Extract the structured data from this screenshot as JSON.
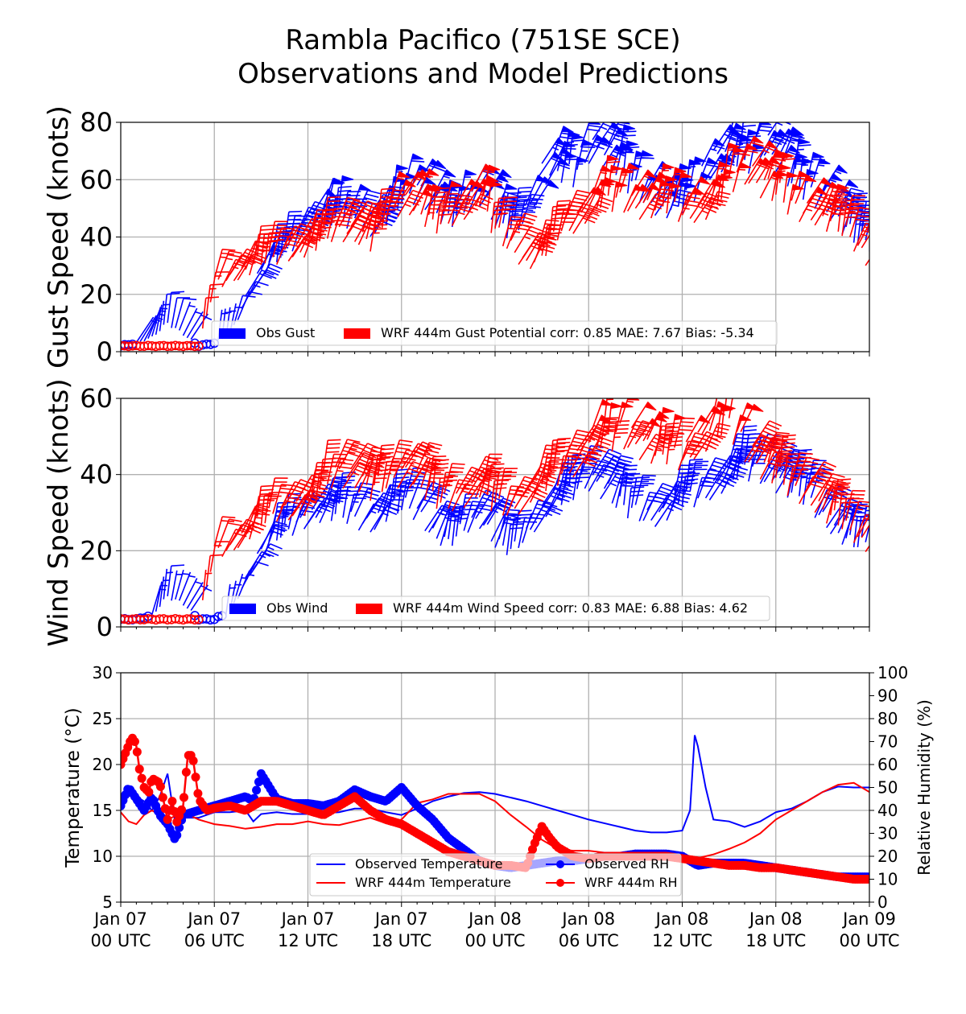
{
  "title": {
    "line1": "Rambla Pacifico (751SE SCE)",
    "line2": "Observations and Model Predictions"
  },
  "colors": {
    "obs": "#0000ff",
    "wrf": "#ff0000",
    "grid": "#b0b0b0"
  },
  "chart_data": [
    {
      "id": "gust",
      "type": "line",
      "subtype": "wind-barbs",
      "ylabel": "Gust Speed (knots)",
      "ylim": [
        0,
        80
      ],
      "yticks": [
        0,
        20,
        40,
        60,
        80
      ],
      "xlabel": "",
      "x_unit": "hours since Jan 07 00 UTC",
      "xlim": [
        0,
        48
      ],
      "grid": true,
      "legend": {
        "placement": "lower-center",
        "entries": [
          "Obs Gust",
          "WRF 444m Gust Potential corr: 0.85 MAE: 7.67 Bias: -5.34"
        ]
      },
      "series": [
        {
          "name": "Obs Gust",
          "x": [
            0,
            1,
            2,
            3,
            4,
            5,
            6,
            7,
            8,
            9,
            10,
            11,
            12,
            13,
            14,
            15,
            16,
            17,
            18,
            19,
            20,
            21,
            22,
            23,
            24,
            25,
            26,
            27,
            28,
            29,
            30,
            31,
            32,
            33,
            34,
            35,
            36,
            37,
            38,
            39,
            40,
            41,
            42,
            43,
            44,
            45,
            46,
            47,
            48
          ],
          "values": [
            2,
            3,
            5,
            10,
            6,
            2,
            3,
            6,
            18,
            28,
            33,
            38,
            43,
            48,
            47,
            45,
            42,
            48,
            54,
            56,
            50,
            46,
            50,
            55,
            46,
            42,
            48,
            62,
            64,
            62,
            70,
            68,
            64,
            56,
            52,
            50,
            52,
            58,
            66,
            70,
            66,
            72,
            68,
            60,
            56,
            52,
            46,
            40,
            38
          ]
        },
        {
          "name": "WRF 444m Gust Potential",
          "x": [
            0,
            1,
            2,
            3,
            4,
            5,
            6,
            7,
            8,
            9,
            10,
            11,
            12,
            13,
            14,
            15,
            16,
            17,
            18,
            19,
            20,
            21,
            22,
            23,
            24,
            25,
            26,
            27,
            28,
            29,
            30,
            31,
            32,
            33,
            34,
            35,
            36,
            37,
            38,
            39,
            40,
            41,
            42,
            43,
            44,
            45,
            46,
            47,
            48
          ],
          "values": [
            2,
            2,
            2,
            2,
            2,
            2,
            24,
            25,
            28,
            32,
            33,
            34,
            36,
            40,
            42,
            40,
            38,
            48,
            52,
            50,
            44,
            46,
            50,
            54,
            42,
            36,
            30,
            34,
            42,
            44,
            50,
            54,
            52,
            50,
            50,
            52,
            48,
            48,
            52,
            60,
            62,
            58,
            56,
            50,
            48,
            46,
            44,
            38,
            30
          ]
        }
      ]
    },
    {
      "id": "wind",
      "type": "line",
      "subtype": "wind-barbs",
      "ylabel": "Wind Speed (knots)",
      "ylim": [
        0,
        60
      ],
      "yticks": [
        0,
        20,
        40,
        60
      ],
      "xlabel": "",
      "x_unit": "hours since Jan 07 00 UTC",
      "xlim": [
        0,
        48
      ],
      "grid": true,
      "legend": {
        "placement": "lower-center",
        "entries": [
          "Obs Wind",
          "WRF 444m Wind Speed corr: 0.83 MAE: 6.88 Bias: 4.62"
        ]
      },
      "series": [
        {
          "name": "Obs Wind",
          "x": [
            0,
            1,
            2,
            3,
            4,
            5,
            6,
            7,
            8,
            9,
            10,
            11,
            12,
            13,
            14,
            15,
            16,
            17,
            18,
            19,
            20,
            21,
            22,
            23,
            24,
            25,
            26,
            27,
            28,
            29,
            30,
            31,
            32,
            33,
            34,
            35,
            36,
            37,
            38,
            39,
            40,
            41,
            42,
            43,
            44,
            45,
            46,
            47,
            48
          ],
          "values": [
            2,
            2,
            3,
            8,
            6,
            2,
            2,
            4,
            12,
            20,
            24,
            26,
            28,
            30,
            30,
            28,
            26,
            30,
            32,
            30,
            24,
            22,
            26,
            28,
            22,
            20,
            24,
            30,
            34,
            36,
            38,
            36,
            32,
            30,
            28,
            30,
            34,
            34,
            36,
            40,
            42,
            40,
            38,
            36,
            34,
            28,
            24,
            22,
            22
          ]
        },
        {
          "name": "WRF 444m Wind Speed",
          "x": [
            0,
            1,
            2,
            3,
            4,
            5,
            6,
            7,
            8,
            9,
            10,
            11,
            12,
            13,
            14,
            15,
            16,
            17,
            18,
            19,
            20,
            21,
            22,
            23,
            24,
            25,
            26,
            27,
            28,
            29,
            30,
            31,
            32,
            33,
            34,
            35,
            36,
            37,
            38,
            39,
            40,
            41,
            42,
            43,
            44,
            45,
            46,
            47,
            48
          ],
          "values": [
            2,
            2,
            2,
            2,
            2,
            2,
            20,
            20,
            24,
            28,
            30,
            30,
            32,
            38,
            40,
            38,
            36,
            38,
            40,
            38,
            34,
            32,
            34,
            36,
            32,
            30,
            34,
            38,
            40,
            42,
            48,
            50,
            50,
            48,
            46,
            46,
            44,
            48,
            52,
            54,
            46,
            42,
            40,
            36,
            34,
            30,
            28,
            24,
            20
          ]
        }
      ]
    },
    {
      "id": "temp-rh",
      "type": "line",
      "ylabel": "Temperature (°C)",
      "ylim": [
        5,
        30
      ],
      "yticks": [
        5,
        10,
        15,
        20,
        25,
        30
      ],
      "y2label": "Relative Humidity (%)",
      "y2lim": [
        0,
        100
      ],
      "y2ticks": [
        0,
        10,
        20,
        30,
        40,
        50,
        60,
        70,
        80,
        90,
        100
      ],
      "x_unit": "hours since Jan 07 00 UTC",
      "xlim": [
        0,
        48
      ],
      "xticks": [
        0,
        6,
        12,
        18,
        24,
        30,
        36,
        42,
        48
      ],
      "xticklabels": [
        [
          "Jan 07",
          "00 UTC"
        ],
        [
          "Jan 07",
          "06 UTC"
        ],
        [
          "Jan 07",
          "12 UTC"
        ],
        [
          "Jan 07",
          "18 UTC"
        ],
        [
          "Jan 08",
          "00 UTC"
        ],
        [
          "Jan 08",
          "06 UTC"
        ],
        [
          "Jan 08",
          "12 UTC"
        ],
        [
          "Jan 08",
          "18 UTC"
        ],
        [
          "Jan 09",
          "00 UTC"
        ]
      ],
      "grid": true,
      "legend": {
        "placement": "lower-center",
        "entries": [
          "Observed Temperature",
          "WRF 444m Temperature",
          "Observed RH",
          "WRF 444m RH"
        ]
      },
      "series": [
        {
          "name": "Observed Temperature",
          "axis": "left",
          "x": [
            0,
            0.5,
            1,
            1.5,
            2,
            2.5,
            3,
            3.5,
            4,
            5,
            6,
            7,
            8,
            8.5,
            9,
            10,
            11,
            12,
            13,
            14,
            15,
            16,
            17,
            18,
            19,
            20,
            21,
            22,
            23,
            24,
            25,
            26,
            27,
            28,
            29,
            30,
            31,
            32,
            33,
            34,
            35,
            36,
            36.5,
            36.8,
            37,
            37.5,
            38,
            39,
            40,
            41,
            42,
            43,
            44,
            45,
            46,
            47,
            48
          ],
          "values": [
            16.5,
            17.2,
            16.5,
            16.0,
            15.0,
            16.5,
            19.0,
            13.5,
            14.2,
            14.2,
            14.8,
            14.8,
            15.0,
            13.8,
            14.6,
            14.8,
            14.6,
            14.6,
            14.7,
            14.8,
            15.2,
            15.2,
            14.8,
            14.5,
            15.2,
            16.0,
            16.5,
            16.9,
            17.0,
            16.8,
            16.4,
            16.0,
            15.5,
            15.0,
            14.5,
            14.0,
            13.6,
            13.2,
            12.8,
            12.6,
            12.6,
            12.8,
            15.0,
            23.2,
            22.0,
            17.5,
            14.0,
            13.8,
            13.2,
            13.8,
            14.8,
            15.2,
            16.0,
            17.0,
            17.6,
            17.5,
            17.5
          ]
        },
        {
          "name": "WRF 444m Temperature",
          "axis": "left",
          "x": [
            0,
            0.5,
            1,
            1.5,
            2,
            3,
            4,
            5,
            6,
            7,
            8,
            9,
            10,
            11,
            12,
            13,
            14,
            15,
            16,
            17,
            18,
            19,
            20,
            21,
            22,
            23,
            24,
            25,
            26,
            27,
            28,
            29,
            30,
            31,
            32,
            33,
            34,
            35,
            36,
            37,
            38,
            39,
            40,
            41,
            42,
            43,
            44,
            45,
            46,
            47,
            48
          ],
          "values": [
            14.8,
            13.8,
            13.5,
            14.5,
            15.0,
            14.0,
            14.8,
            14.0,
            13.5,
            13.3,
            13.0,
            13.2,
            13.5,
            13.5,
            13.8,
            13.5,
            13.4,
            13.8,
            14.2,
            13.6,
            14.0,
            15.8,
            16.2,
            16.8,
            16.8,
            16.8,
            16.0,
            14.5,
            13.2,
            11.8,
            10.8,
            10.6,
            10.6,
            10.4,
            10.3,
            10.3,
            10.2,
            10.0,
            10.0,
            9.8,
            10.2,
            10.8,
            11.5,
            12.5,
            14.0,
            15.0,
            16.0,
            17.0,
            17.8,
            18.0,
            17.0
          ]
        },
        {
          "name": "Observed RH",
          "axis": "right",
          "x": [
            0,
            0.5,
            1,
            1.5,
            2,
            2.5,
            3,
            3.5,
            4,
            5,
            6,
            7,
            8,
            8.5,
            9,
            10,
            11,
            12,
            13,
            14,
            15,
            16,
            17,
            18,
            19,
            20,
            21,
            22,
            23,
            24,
            25,
            26,
            27,
            28,
            29,
            30,
            31,
            32,
            33,
            34,
            35,
            36,
            36.5,
            37,
            38,
            39,
            40,
            41,
            42,
            43,
            44,
            45,
            46,
            47,
            48
          ],
          "values": [
            42,
            50,
            45,
            40,
            46,
            38,
            34,
            27,
            38,
            40,
            42,
            44,
            46,
            44,
            56,
            45,
            43,
            43,
            42,
            44,
            49,
            46,
            44,
            50,
            42,
            36,
            28,
            23,
            18,
            16,
            15,
            16,
            17,
            18,
            18,
            19,
            20,
            20,
            21,
            21,
            21,
            20,
            18,
            16,
            17,
            17,
            17,
            16,
            15,
            14,
            13,
            12,
            11,
            11,
            11
          ]
        },
        {
          "name": "WRF 444m RH",
          "axis": "right",
          "x": [
            0,
            0.3,
            0.6,
            0.8,
            1,
            1.2,
            1.5,
            1.8,
            2,
            2.5,
            3,
            3.3,
            3.6,
            4,
            4.3,
            4.6,
            5,
            5.5,
            6,
            7,
            8,
            9,
            10,
            11,
            12,
            13,
            14,
            15,
            16,
            17,
            18,
            19,
            20,
            21,
            22,
            23,
            24,
            25,
            26,
            26.5,
            27,
            27.5,
            28,
            29,
            30,
            31,
            32,
            33,
            34,
            35,
            36,
            37,
            38,
            39,
            40,
            41,
            42,
            43,
            44,
            45,
            46,
            47,
            48
          ],
          "values": [
            60,
            65,
            70,
            72,
            68,
            58,
            50,
            48,
            54,
            52,
            36,
            44,
            35,
            42,
            64,
            64,
            45,
            40,
            41,
            42,
            40,
            44,
            44,
            42,
            40,
            38,
            42,
            46,
            40,
            36,
            34,
            30,
            26,
            22,
            20,
            18,
            16,
            16,
            15,
            25,
            33,
            28,
            24,
            20,
            19,
            20,
            20,
            20,
            20,
            20,
            19,
            18,
            17,
            16,
            16,
            15,
            15,
            14,
            13,
            12,
            11,
            10,
            10
          ]
        }
      ]
    }
  ]
}
